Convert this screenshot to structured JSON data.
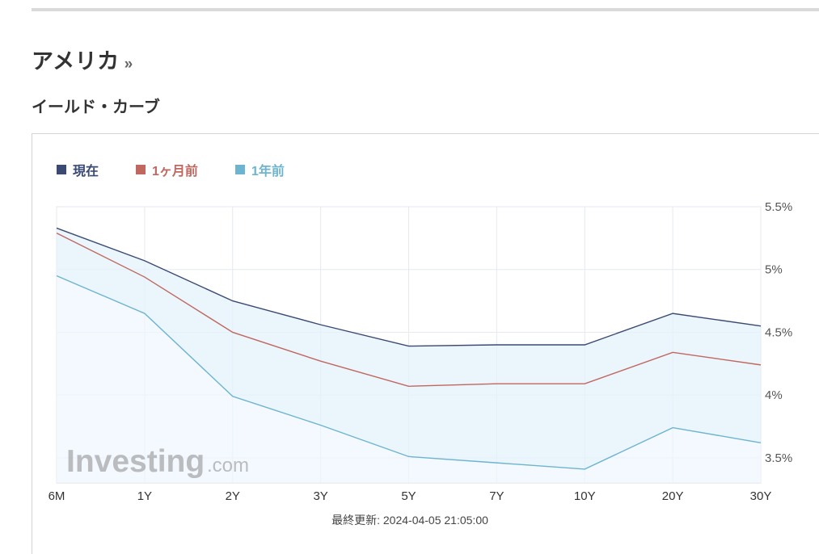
{
  "header": {
    "country": "アメリカ",
    "chevron": "»",
    "subtitle": "イールド・カーブ"
  },
  "legend": [
    {
      "label": "現在",
      "color": "#3b4a73"
    },
    {
      "label": "1ヶ月前",
      "color": "#c0675f"
    },
    {
      "label": "1年前",
      "color": "#6cb4cf"
    }
  ],
  "watermark": {
    "brand": "Investing",
    "suffix": ".com"
  },
  "footer": {
    "updated": "最終更新: 2024-04-05 21:05:00"
  },
  "chart_data": {
    "type": "line",
    "categories": [
      "6M",
      "1Y",
      "2Y",
      "3Y",
      "5Y",
      "7Y",
      "10Y",
      "20Y",
      "30Y"
    ],
    "series": [
      {
        "name": "現在",
        "color": "#3b4a73",
        "values": [
          5.33,
          5.07,
          4.75,
          4.56,
          4.39,
          4.4,
          4.4,
          4.65,
          4.55
        ]
      },
      {
        "name": "1ヶ月前",
        "color": "#c0675f",
        "values": [
          5.29,
          4.94,
          4.5,
          4.27,
          4.07,
          4.09,
          4.09,
          4.34,
          4.24
        ]
      },
      {
        "name": "1年前",
        "color": "#6cb4cf",
        "values": [
          4.95,
          4.65,
          3.99,
          3.76,
          3.51,
          3.46,
          3.41,
          3.74,
          3.62
        ]
      }
    ],
    "ylim": [
      3.3,
      5.5
    ],
    "yticks": [
      3.5,
      4,
      4.5,
      5,
      5.5
    ],
    "ytick_labels": [
      "3.5%",
      "4%",
      "4.5%",
      "5%",
      "5.5%"
    ],
    "grid": true,
    "fill_between": "現在 / 1年前",
    "legend_position": "top-left"
  }
}
